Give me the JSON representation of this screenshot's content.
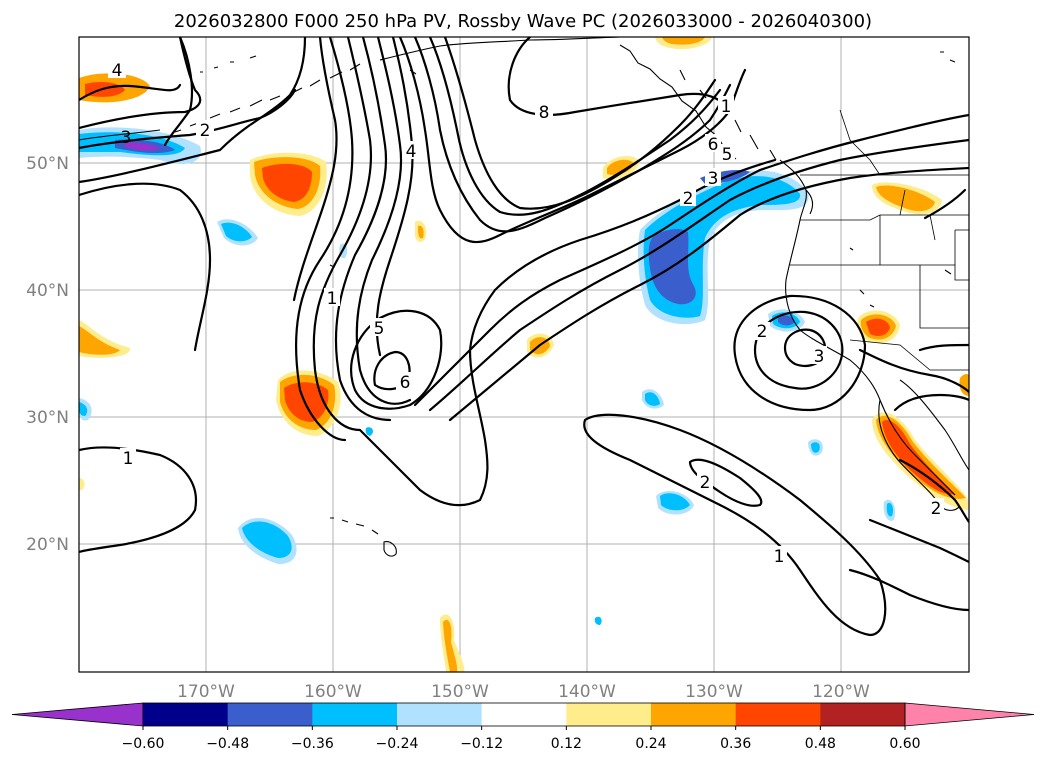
{
  "figure": {
    "title": "2026032800 F000 250 hPa PV, Rossby Wave PC (2026033000 - 2026040300)"
  },
  "map": {
    "lon_labels": [
      "170°W",
      "160°W",
      "150°W",
      "140°W",
      "130°W",
      "120°W"
    ],
    "lat_labels": [
      "50°N",
      "40°N",
      "30°N",
      "20°N"
    ],
    "contour_labels": [
      "4",
      "2",
      "3",
      "4",
      "1",
      "5",
      "6",
      "8",
      "1",
      "6",
      "5",
      "3",
      "2",
      "2",
      "3",
      "1",
      "2",
      "1",
      "2"
    ]
  },
  "colorbar": {
    "ticks": [
      "−0.60",
      "−0.48",
      "−0.36",
      "−0.24",
      "−0.12",
      "0.12",
      "0.24",
      "0.36",
      "0.48",
      "0.60"
    ],
    "tick_values": [
      -0.6,
      -0.48,
      -0.36,
      -0.24,
      -0.12,
      0.12,
      0.24,
      0.36,
      0.48,
      0.6
    ],
    "colors": [
      "#9932cc",
      "#00008b",
      "#3a5fcd",
      "#00bfff",
      "#b0e2ff",
      "#ffffff",
      "#ffec8b",
      "#ffa500",
      "#ff4500",
      "#b22222",
      "#ff82ab"
    ]
  }
}
